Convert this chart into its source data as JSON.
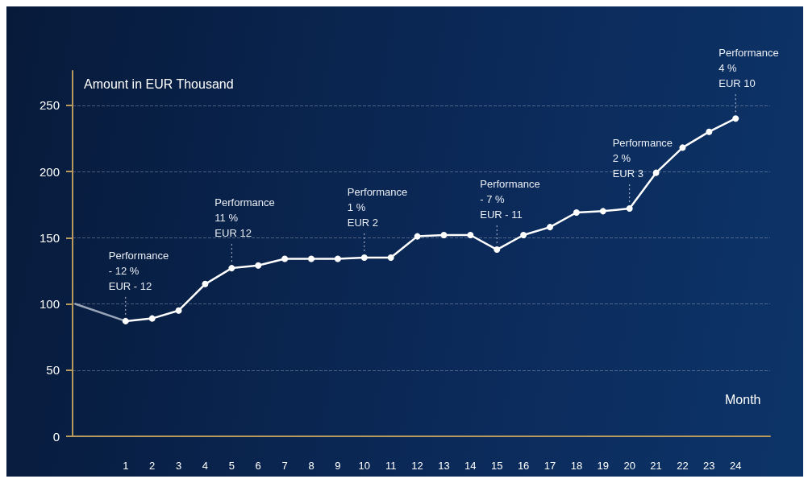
{
  "chart_data": {
    "type": "line",
    "ylabel": "Amount in EUR Thousand",
    "xlabel": "Month",
    "xlim": [
      -1,
      25.3
    ],
    "xticks": [
      1,
      2,
      3,
      4,
      5,
      6,
      7,
      8,
      9,
      10,
      11,
      12,
      13,
      14,
      15,
      16,
      17,
      18,
      19,
      20,
      21,
      22,
      23,
      24
    ],
    "ylim": [
      0,
      276
    ],
    "yticks": [
      0,
      50,
      100,
      150,
      200,
      250
    ],
    "grid": "y",
    "marker": "circle",
    "line_style": "solid",
    "series": [
      {
        "color": "#9aa6b8",
        "marker": "none",
        "x": [
          -0.9,
          1
        ],
        "values": [
          100,
          87
        ]
      },
      {
        "color": "#ffffff",
        "x": [
          1,
          2,
          3,
          4,
          5,
          6,
          7,
          8,
          9,
          10,
          11,
          12,
          13,
          14,
          15,
          16,
          17,
          18,
          19,
          20,
          21,
          22,
          23,
          24
        ],
        "values": [
          87,
          89,
          95,
          115,
          127,
          129,
          134,
          134,
          134,
          135,
          135,
          151,
          152,
          152,
          141,
          152,
          158,
          169,
          170,
          172,
          199,
          218,
          230,
          240
        ]
      }
    ],
    "annotations": [
      {
        "text": "Performance\n- 12 %\nEUR - 12",
        "x": 1,
        "y": 87
      },
      {
        "text": "Performance\n11 %\nEUR 12",
        "x": 5,
        "y": 127
      },
      {
        "text": "Performance\n1 %\nEUR 2",
        "x": 10,
        "y": 135
      },
      {
        "text": "Performance\n- 7 %\nEUR - 11",
        "x": 15,
        "y": 141
      },
      {
        "text": "Performance\n2 %\nEUR 3",
        "x": 20,
        "y": 172
      },
      {
        "text": "Performance\n4 %\nEUR 10",
        "x": 24,
        "y": 240
      }
    ]
  }
}
